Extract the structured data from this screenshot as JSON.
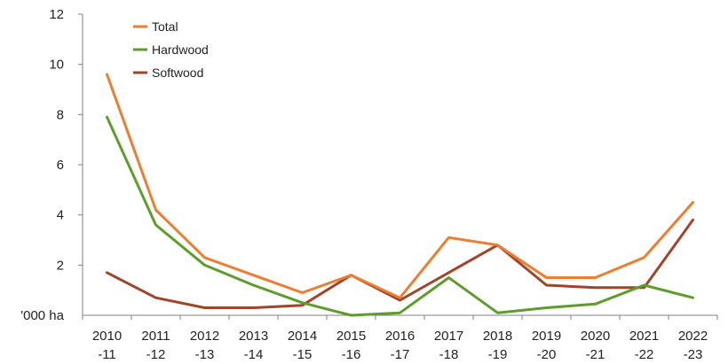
{
  "chart_data": {
    "type": "line",
    "x_labels": [
      [
        "2010",
        "-11"
      ],
      [
        "2011",
        "-12"
      ],
      [
        "2012",
        "-13"
      ],
      [
        "2013",
        "-14"
      ],
      [
        "2014",
        "-15"
      ],
      [
        "2015",
        "-16"
      ],
      [
        "2016",
        "-17"
      ],
      [
        "2017",
        "-18"
      ],
      [
        "2018",
        "-19"
      ],
      [
        "2019",
        "-20"
      ],
      [
        "2020",
        "-21"
      ],
      [
        "2021",
        "-22"
      ],
      [
        "2022",
        "-23"
      ]
    ],
    "ylabel": "'000 ha",
    "ylim": [
      0,
      12
    ],
    "yticks": [
      2,
      4,
      6,
      8,
      10,
      12
    ],
    "grid": false,
    "legend_position": "top-left",
    "series": [
      {
        "name": "Total",
        "color": "#ED7D31",
        "values": [
          9.6,
          4.2,
          2.3,
          1.6,
          0.9,
          1.6,
          0.7,
          3.1,
          2.8,
          1.5,
          1.5,
          2.3,
          4.5
        ]
      },
      {
        "name": "Hardwood",
        "color": "#5E9D2B",
        "values": [
          7.9,
          3.6,
          2.0,
          1.2,
          0.5,
          0.0,
          0.1,
          1.5,
          0.1,
          0.3,
          0.45,
          1.2,
          0.7
        ]
      },
      {
        "name": "Softwood",
        "color": "#A0442A",
        "values": [
          1.7,
          0.7,
          0.3,
          0.3,
          0.4,
          1.6,
          0.6,
          1.7,
          2.8,
          1.2,
          1.1,
          1.1,
          3.8
        ]
      }
    ]
  }
}
